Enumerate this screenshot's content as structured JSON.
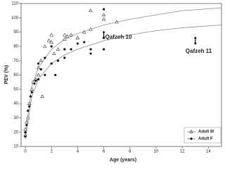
{
  "chart_data": {
    "type": "scatter",
    "xlabel": "Age (years)",
    "ylabel": "PEV (%)",
    "xlim": [
      0,
      15
    ],
    "ylim": [
      10,
      110
    ],
    "xticks": [
      0,
      2,
      4,
      6,
      8,
      10,
      12,
      14
    ],
    "yticks": [
      10,
      20,
      30,
      40,
      50,
      60,
      70,
      80,
      90,
      100,
      110
    ],
    "legend": "lower right",
    "series": [
      {
        "name": "Adult M",
        "marker": "open-triangle",
        "color": "#333333",
        "x": [
          0,
          0,
          0.1,
          0.2,
          0.3,
          0.5,
          0.6,
          0.8,
          1,
          1,
          1.2,
          1.3,
          1.5,
          1.8,
          2,
          2,
          2.2,
          2.5,
          3,
          3,
          3.2,
          3.5,
          4,
          4.5,
          5,
          5,
          6,
          6,
          7
        ],
        "values": [
          18,
          22,
          27,
          30,
          40,
          50,
          55,
          57,
          60,
          65,
          70,
          45,
          80,
          84,
          88,
          83,
          75,
          78,
          85,
          88,
          87,
          88,
          86,
          90,
          105,
          92,
          102,
          99,
          97
        ]
      },
      {
        "name": "Adult F",
        "marker": "filled-circle",
        "color": "#111111",
        "x": [
          0,
          0,
          0.1,
          0.2,
          0.3,
          0.4,
          0.5,
          0.7,
          0.8,
          1,
          1,
          1.2,
          1.5,
          1.5,
          2,
          2,
          2.3,
          2.5,
          3,
          3,
          3.5,
          4,
          4.5,
          5,
          5,
          6,
          6,
          6
        ],
        "values": [
          17,
          20,
          25,
          35,
          38,
          45,
          48,
          54,
          56,
          57,
          68,
          64,
          60,
          72,
          68,
          80,
          60,
          70,
          78,
          72,
          78,
          82,
          83,
          78,
          75,
          106,
          78,
          86
        ]
      }
    ],
    "curves": [
      {
        "color": "#999999",
        "x": [
          0,
          0.5,
          1,
          2,
          3,
          4,
          6,
          8,
          10,
          12,
          15
        ],
        "values": [
          18,
          52,
          65,
          78,
          85,
          89,
          95,
          99,
          102,
          105,
          107
        ]
      },
      {
        "color": "#999999",
        "x": [
          0,
          0.5,
          1,
          2,
          3,
          4,
          6,
          8,
          10,
          12,
          15
        ],
        "values": [
          15,
          45,
          57,
          68,
          74,
          78,
          84,
          88,
          91,
          93,
          95
        ]
      }
    ],
    "annotations": [
      {
        "text": "Qafzeh 10",
        "x": 6,
        "y": 88
      },
      {
        "text": "Qafzeh 11",
        "x": 13,
        "y": 84
      }
    ]
  }
}
